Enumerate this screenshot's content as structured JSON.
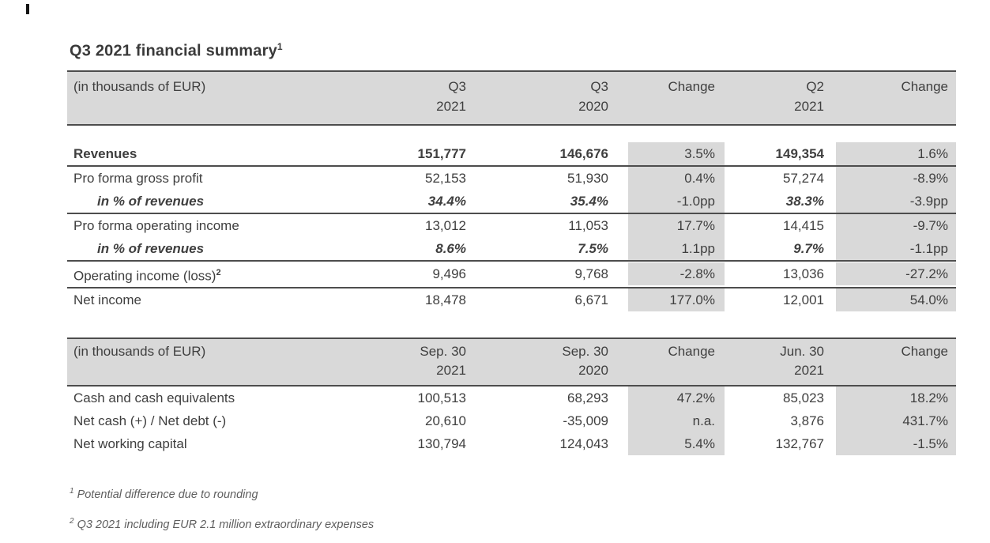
{
  "page": {
    "title": "Q3 2021 financial summary",
    "title_sup": "1"
  },
  "income_table": {
    "unit_label": "(in thousands of EUR)",
    "columns": [
      {
        "line1": "Q3",
        "line2": "2021"
      },
      {
        "line1": "Q3",
        "line2": "2020"
      },
      {
        "line1": "Change",
        "line2": ""
      },
      {
        "line1": "Q2",
        "line2": "2021"
      },
      {
        "line1": "Change",
        "line2": ""
      }
    ],
    "rows": [
      {
        "label": "Revenues",
        "sup": "",
        "style": "bold",
        "sep_below": true,
        "values": [
          "151,777",
          "146,676",
          "3.5%",
          "149,354",
          "1.6%"
        ]
      },
      {
        "label": "Pro forma gross profit",
        "sup": "",
        "style": "normal",
        "sep_below": false,
        "values": [
          "52,153",
          "51,930",
          "0.4%",
          "57,274",
          "-8.9%"
        ]
      },
      {
        "label": "in % of revenues",
        "sup": "",
        "style": "pct",
        "sep_below": true,
        "values": [
          "34.4%",
          "35.4%",
          "-1.0pp",
          "38.3%",
          "-3.9pp"
        ]
      },
      {
        "label": "Pro forma operating income",
        "sup": "",
        "style": "normal",
        "sep_below": false,
        "values": [
          "13,012",
          "11,053",
          "17.7%",
          "14,415",
          "-9.7%"
        ]
      },
      {
        "label": "in % of revenues",
        "sup": "",
        "style": "pct",
        "sep_below": true,
        "values": [
          "8.6%",
          "7.5%",
          "1.1pp",
          "9.7%",
          "-1.1pp"
        ]
      },
      {
        "label": "Operating income (loss)",
        "sup": "2",
        "style": "normal",
        "sep_below": true,
        "values": [
          "9,496",
          "9,768",
          "-2.8%",
          "13,036",
          "-27.2%"
        ]
      },
      {
        "label": "Net income",
        "sup": "",
        "style": "normal",
        "sep_below": false,
        "values": [
          "18,478",
          "6,671",
          "177.0%",
          "12,001",
          "54.0%"
        ]
      }
    ]
  },
  "balance_table": {
    "unit_label": "(in thousands of EUR)",
    "columns": [
      {
        "line1": "Sep. 30",
        "line2": "2021"
      },
      {
        "line1": "Sep. 30",
        "line2": "2020"
      },
      {
        "line1": "Change",
        "line2": ""
      },
      {
        "line1": "Jun. 30",
        "line2": "2021"
      },
      {
        "line1": "Change",
        "line2": ""
      }
    ],
    "rows": [
      {
        "label": "Cash and cash equivalents",
        "sup": "",
        "style": "normal",
        "sep_below": false,
        "values": [
          "100,513",
          "68,293",
          "47.2%",
          "85,023",
          "18.2%"
        ]
      },
      {
        "label": "Net cash (+) / Net debt (-)",
        "sup": "",
        "style": "normal",
        "sep_below": false,
        "values": [
          "20,610",
          "-35,009",
          "n.a.",
          "3,876",
          "431.7%"
        ]
      },
      {
        "label": "Net working capital",
        "sup": "",
        "style": "normal",
        "sep_below": false,
        "values": [
          "130,794",
          "124,043",
          "5.4%",
          "132,767",
          "-1.5%"
        ]
      }
    ]
  },
  "footnotes": [
    {
      "sup": "1",
      "text": "Potential difference due to rounding"
    },
    {
      "sup": "2",
      "text": "Q3 2021 including EUR 2.1 million extraordinary expenses"
    }
  ],
  "colors": {
    "header_gray": "#d9d9d9",
    "change_gray": "#d9d9d9",
    "text": "#3f3f3f",
    "border": "#4d4d4d"
  }
}
